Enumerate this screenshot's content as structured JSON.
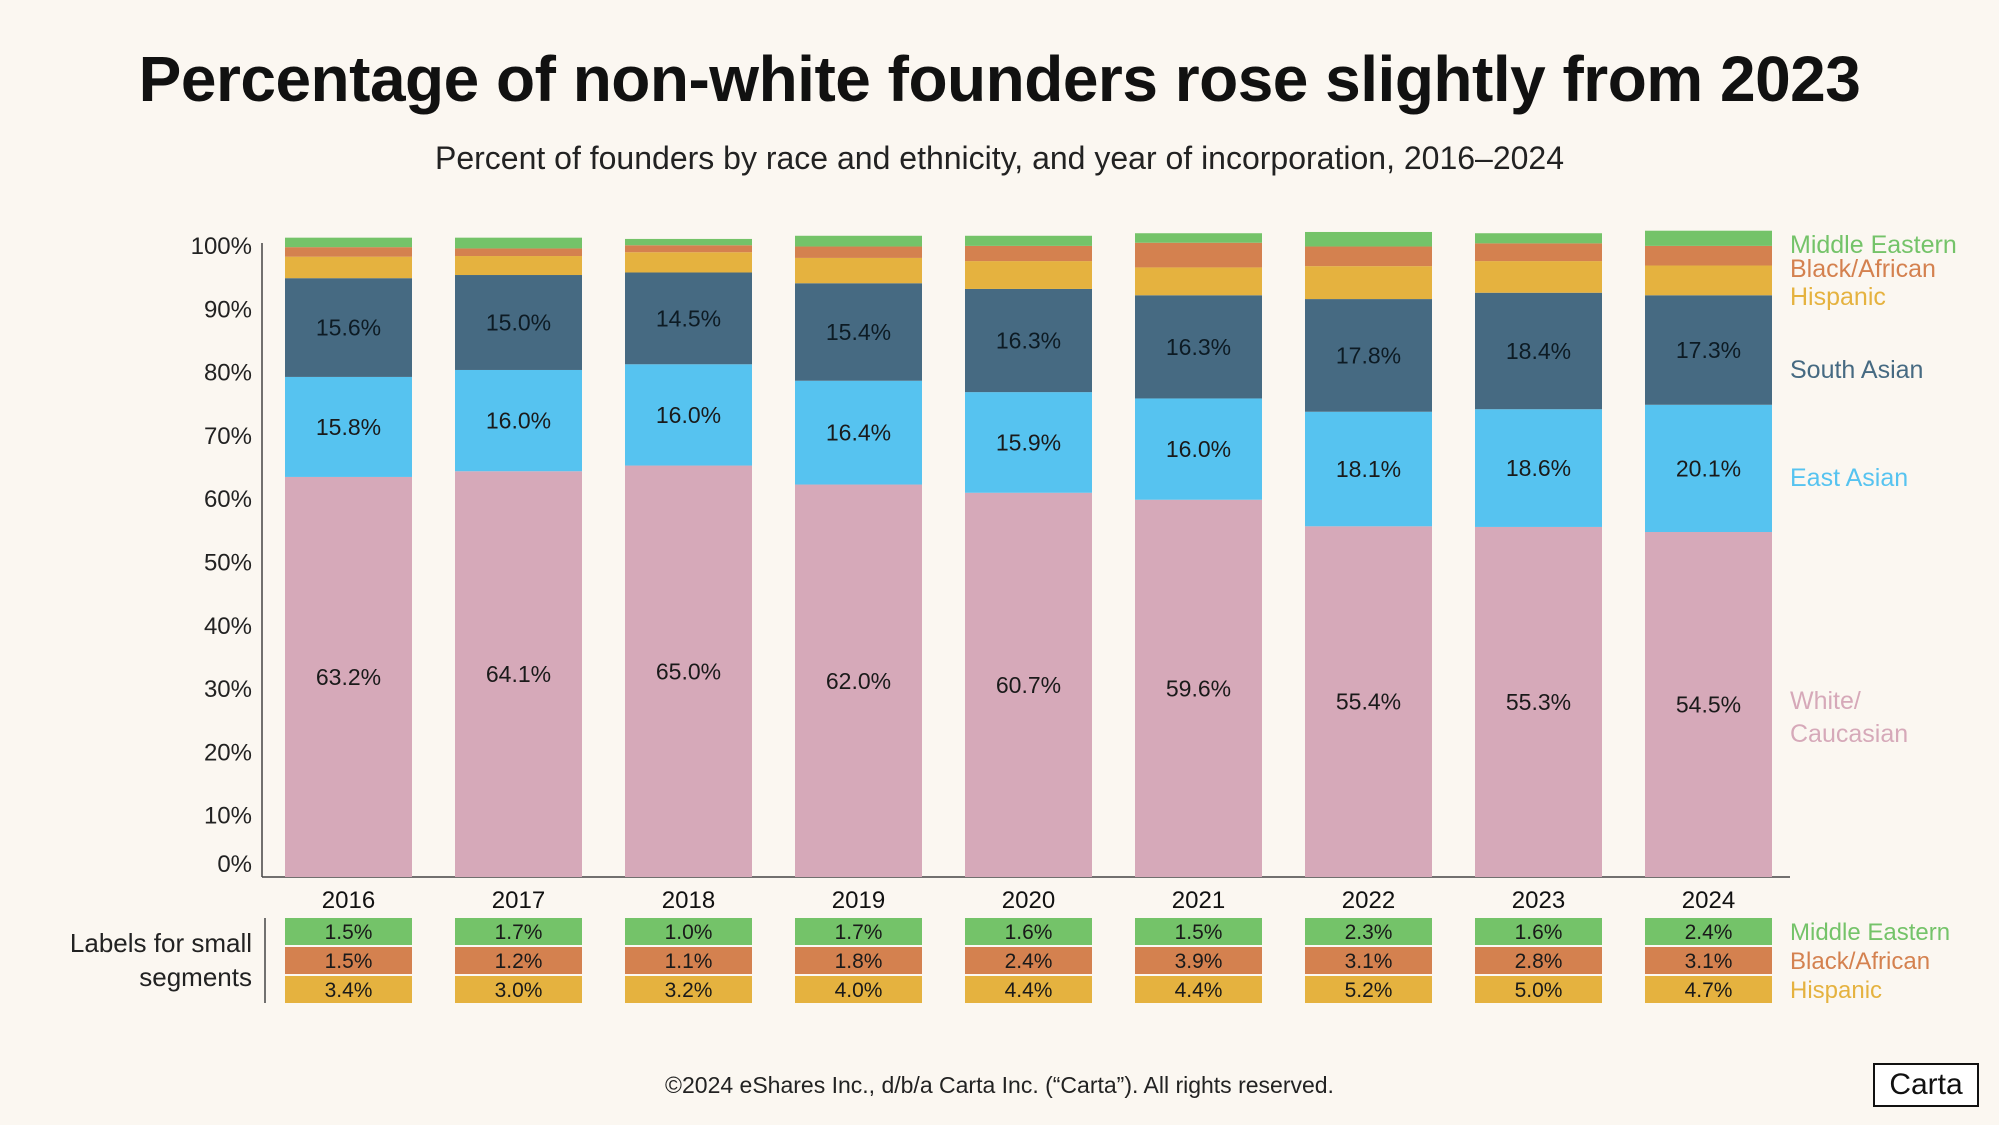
{
  "title": "Percentage of non-white founders rose slightly from 2023",
  "subtitle": "Percent of founders by race and ethnicity, and year of incorporation, 2016–2024",
  "small_segments_label": "Labels for small segments",
  "footer": "©2024 eShares Inc., d/b/a Carta Inc. (“Carta”). All rights reserved.",
  "logo": "Carta",
  "colors": {
    "white_caucasian": "#D6A9B9",
    "east_asian": "#56C3F0",
    "south_asian": "#466A82",
    "hispanic": "#E5B23F",
    "black_african": "#D4814F",
    "middle_eastern": "#74C369",
    "background": "#FBF7F1"
  },
  "chart_data": {
    "type": "bar",
    "stacked": true,
    "title": "Percentage of non-white founders rose slightly from 2023",
    "subtitle": "Percent of founders by race and ethnicity, and year of incorporation, 2016–2024",
    "xlabel": "",
    "ylabel": "",
    "ylim": [
      0,
      100
    ],
    "yticks": [
      "0%",
      "10%",
      "20%",
      "30%",
      "40%",
      "50%",
      "60%",
      "70%",
      "80%",
      "90%",
      "100%"
    ],
    "categories": [
      "2016",
      "2017",
      "2018",
      "2019",
      "2020",
      "2021",
      "2022",
      "2023",
      "2024"
    ],
    "series": [
      {
        "name": "White/ Caucasian",
        "legend": [
          "White/",
          "Caucasian"
        ],
        "color": "#D6A9B9",
        "label_color": "#D6A9B9",
        "values": [
          63.2,
          64.1,
          65.0,
          62.0,
          60.7,
          59.6,
          55.4,
          55.3,
          54.5
        ],
        "labels": [
          "63.2%",
          "64.1%",
          "65.0%",
          "62.0%",
          "60.7%",
          "59.6%",
          "55.4%",
          "55.3%",
          "54.5%"
        ]
      },
      {
        "name": "East Asian",
        "legend": [
          "East Asian"
        ],
        "color": "#56C3F0",
        "label_color": "#56C3F0",
        "values": [
          15.8,
          16.0,
          16.0,
          16.4,
          15.9,
          16.0,
          18.1,
          18.6,
          20.1
        ],
        "labels": [
          "15.8%",
          "16.0%",
          "16.0%",
          "16.4%",
          "15.9%",
          "16.0%",
          "18.1%",
          "18.6%",
          "20.1%"
        ]
      },
      {
        "name": "South Asian",
        "legend": [
          "South Asian"
        ],
        "color": "#466A82",
        "label_color": "#466A82",
        "values": [
          15.6,
          15.0,
          14.5,
          15.4,
          16.3,
          16.3,
          17.8,
          18.4,
          17.3
        ],
        "labels": [
          "15.6%",
          "15.0%",
          "14.5%",
          "15.4%",
          "16.3%",
          "16.3%",
          "17.8%",
          "18.4%",
          "17.3%"
        ]
      },
      {
        "name": "Hispanic",
        "legend": [
          "Hispanic"
        ],
        "color": "#E5B23F",
        "label_color": "#E5B23F",
        "values": [
          3.4,
          3.0,
          3.2,
          4.0,
          4.4,
          4.4,
          5.2,
          5.0,
          4.7
        ],
        "labels": [
          "3.4%",
          "3.0%",
          "3.2%",
          "4.0%",
          "4.4%",
          "4.4%",
          "5.2%",
          "5.0%",
          "4.7%"
        ]
      },
      {
        "name": "Black/African",
        "legend": [
          "Black/African"
        ],
        "color": "#D4814F",
        "label_color": "#D4814F",
        "values": [
          1.5,
          1.2,
          1.1,
          1.8,
          2.4,
          3.9,
          3.1,
          2.8,
          3.1
        ],
        "labels": [
          "1.5%",
          "1.2%",
          "1.1%",
          "1.8%",
          "2.4%",
          "3.9%",
          "3.1%",
          "2.8%",
          "3.1%"
        ]
      },
      {
        "name": "Middle Eastern",
        "legend": [
          "Middle Eastern"
        ],
        "color": "#74C369",
        "label_color": "#74C369",
        "values": [
          1.5,
          1.7,
          1.0,
          1.7,
          1.6,
          1.5,
          2.3,
          1.6,
          2.4
        ],
        "labels": [
          "1.5%",
          "1.7%",
          "1.0%",
          "1.7%",
          "1.6%",
          "1.5%",
          "2.3%",
          "1.6%",
          "2.4%"
        ]
      }
    ],
    "small_segment_table_order": [
      "Middle Eastern",
      "Black/African",
      "Hispanic"
    ]
  }
}
